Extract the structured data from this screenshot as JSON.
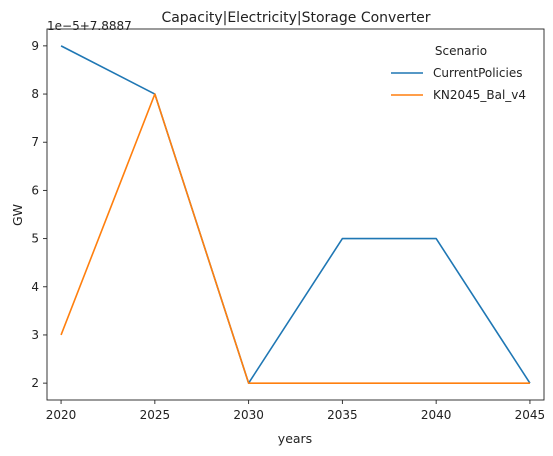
{
  "chart_data": {
    "type": "line",
    "title": "Capacity|Electricity|Storage Converter",
    "xlabel": "years",
    "ylabel": "GW",
    "axis_offset_text": "1e−5+7.8887",
    "x": [
      2020,
      2025,
      2030,
      2035,
      2040,
      2045
    ],
    "x_ticks": [
      "2020",
      "2025",
      "2030",
      "2035",
      "2040",
      "2045"
    ],
    "y_ticks": [
      "2",
      "3",
      "4",
      "5",
      "6",
      "7",
      "8",
      "9"
    ],
    "xlim": [
      2019.25,
      2045.75
    ],
    "ylim": [
      1.65,
      9.35
    ],
    "legend": {
      "title": "Scenario",
      "placement": "top-right"
    },
    "series": [
      {
        "name": "CurrentPolicies",
        "color": "#1f77b4",
        "values": [
          9,
          8,
          2,
          5,
          5,
          2
        ]
      },
      {
        "name": "KN2045_Bal_v4",
        "color": "#ff7f0e",
        "values": [
          3,
          8,
          2,
          2,
          2,
          2
        ]
      }
    ],
    "grid": false
  }
}
